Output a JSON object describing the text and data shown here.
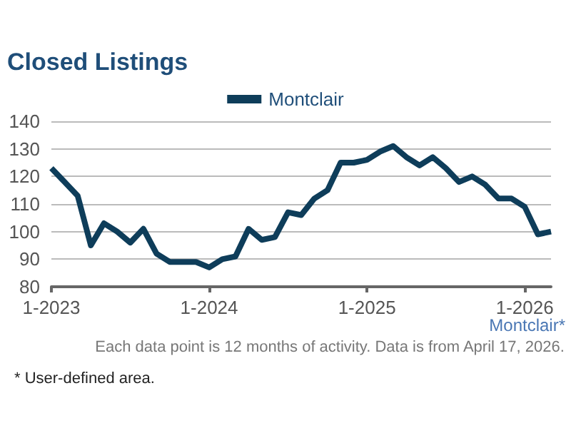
{
  "chart_data": {
    "type": "line",
    "title": "Closed Listings",
    "categories": [
      "1-2023",
      null,
      null,
      null,
      null,
      null,
      null,
      null,
      null,
      null,
      null,
      null,
      "1-2024",
      null,
      null,
      null,
      null,
      null,
      null,
      null,
      null,
      null,
      null,
      null,
      "1-2025",
      null,
      null,
      null,
      null,
      null,
      null,
      null,
      null,
      null,
      null,
      null,
      "1-2026",
      null,
      null
    ],
    "series": [
      {
        "name": "Montclair",
        "color": "#0e3d5a",
        "values": [
          123,
          118,
          113,
          95,
          103,
          100,
          96,
          101,
          92,
          89,
          89,
          89,
          87,
          90,
          91,
          101,
          97,
          98,
          107,
          106,
          112,
          115,
          125,
          125,
          126,
          129,
          131,
          127,
          124,
          127,
          123,
          118,
          120,
          117,
          112,
          112,
          109,
          99,
          100
        ]
      }
    ],
    "ylim": [
      80,
      140
    ],
    "yticks": [
      80,
      90,
      100,
      110,
      120,
      130,
      140
    ],
    "grid": "y",
    "legend": "top",
    "marker": "none",
    "line_style": "solid",
    "annotations": [
      "Montclair*",
      "Each data point is 12 months of activity. Data is from April 17, 2026.",
      "* User-defined area."
    ]
  }
}
